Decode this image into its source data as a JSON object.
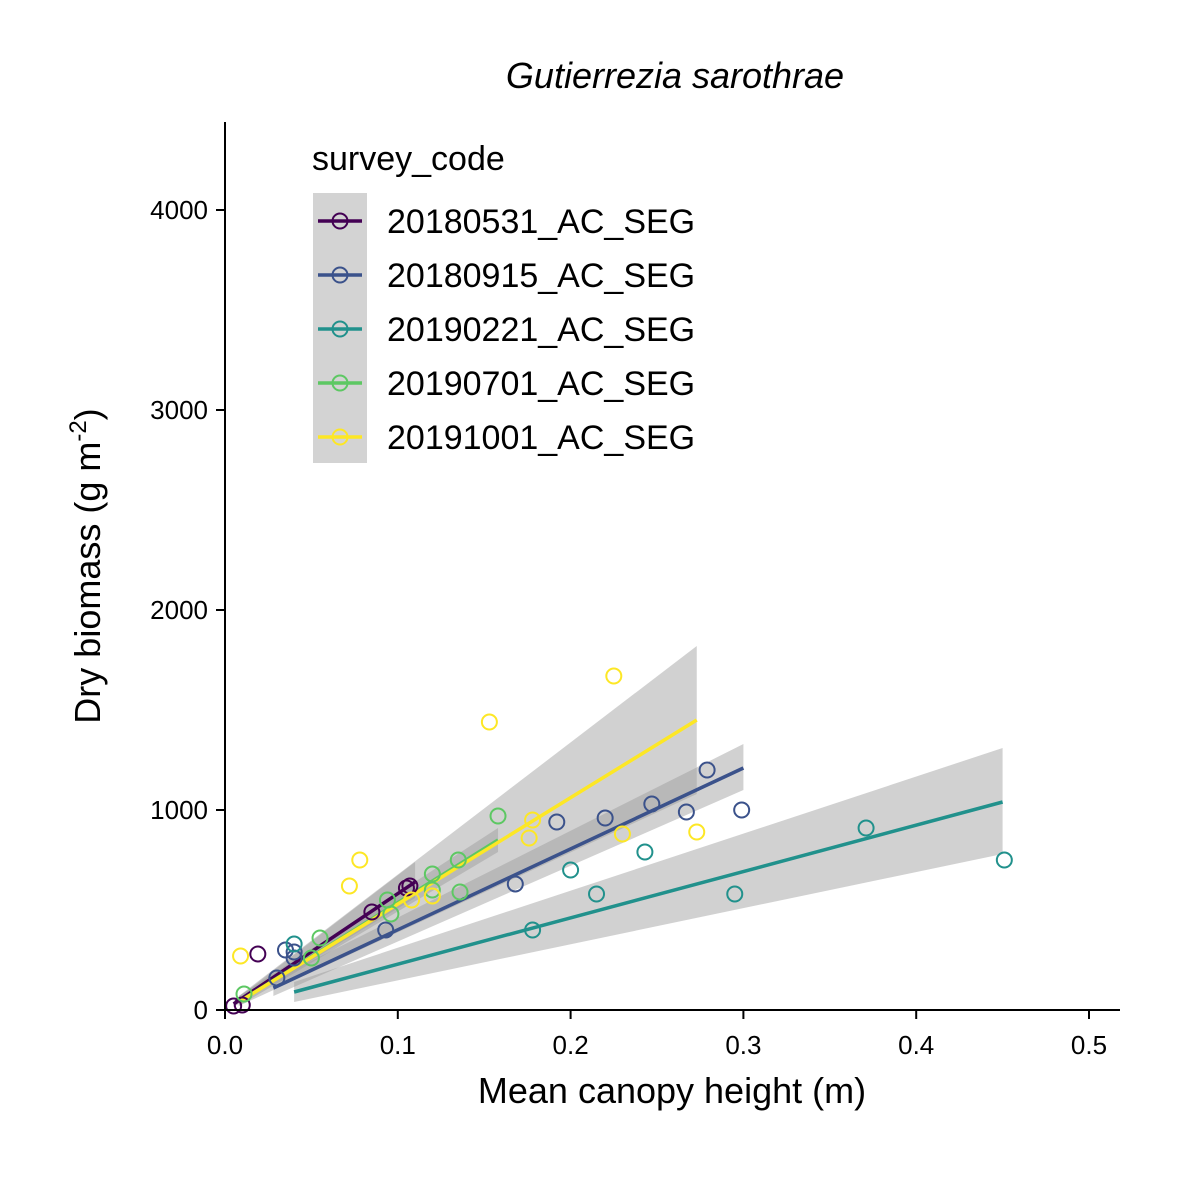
{
  "chart_data": {
    "type": "scatter",
    "title": "Gutierrezia sarothrae",
    "xlabel": "Mean canopy height (m)",
    "ylabel": "Dry biomass (g m",
    "ylabel_sup": "-2",
    "ylabel_close": ")",
    "xlim": [
      0,
      0.52
    ],
    "ylim": [
      0,
      4450
    ],
    "xticks": [
      0.0,
      0.1,
      0.2,
      0.3,
      0.4,
      0.5
    ],
    "xtick_labels": [
      "0.0",
      "0.1",
      "0.2",
      "0.3",
      "0.4",
      "0.5"
    ],
    "yticks": [
      0,
      1000,
      2000,
      3000,
      4000
    ],
    "ytick_labels": [
      "0",
      "1000",
      "2000",
      "3000",
      "4000"
    ],
    "legend": {
      "title": "survey_code",
      "position": "top-left"
    },
    "grid": false,
    "series": [
      {
        "name": "20180531_AC_SEG",
        "color": "#440154",
        "points": [
          [
            0.005,
            20
          ],
          [
            0.01,
            25
          ],
          [
            0.019,
            280
          ],
          [
            0.085,
            490
          ],
          [
            0.105,
            610
          ],
          [
            0.107,
            620
          ]
        ],
        "fit": {
          "x": [
            0.005,
            0.11
          ],
          "y": [
            30,
            640
          ],
          "ci_low": [
            [
              0.005,
              15
            ],
            [
              0.11,
              560
            ]
          ],
          "ci_high": [
            [
              0.005,
              45
            ],
            [
              0.11,
              740
            ]
          ]
        }
      },
      {
        "name": "20180915_AC_SEG",
        "color": "#3B528B",
        "points": [
          [
            0.03,
            160
          ],
          [
            0.035,
            300
          ],
          [
            0.04,
            290
          ],
          [
            0.04,
            260
          ],
          [
            0.093,
            400
          ],
          [
            0.168,
            630
          ],
          [
            0.192,
            940
          ],
          [
            0.22,
            960
          ],
          [
            0.247,
            1030
          ],
          [
            0.267,
            990
          ],
          [
            0.279,
            1200
          ],
          [
            0.299,
            1000
          ]
        ],
        "fit": {
          "x": [
            0.028,
            0.3
          ],
          "y": [
            110,
            1210
          ],
          "ci_low": [
            [
              0.028,
              70
            ],
            [
              0.3,
              1100
            ]
          ],
          "ci_high": [
            [
              0.028,
              150
            ],
            [
              0.3,
              1330
            ]
          ]
        }
      },
      {
        "name": "20190221_AC_SEG",
        "color": "#21918C",
        "points": [
          [
            0.04,
            330
          ],
          [
            0.178,
            400
          ],
          [
            0.2,
            700
          ],
          [
            0.215,
            580
          ],
          [
            0.243,
            790
          ],
          [
            0.295,
            580
          ],
          [
            0.371,
            910
          ],
          [
            0.451,
            750
          ]
        ],
        "fit": {
          "x": [
            0.04,
            0.45
          ],
          "y": [
            90,
            1040
          ],
          "ci_low": [
            [
              0.04,
              40
            ],
            [
              0.45,
              780
            ]
          ],
          "ci_high": [
            [
              0.04,
              140
            ],
            [
              0.45,
              1310
            ]
          ]
        }
      },
      {
        "name": "20190701_AC_SEG",
        "color": "#5DC863",
        "points": [
          [
            0.011,
            80
          ],
          [
            0.05,
            260
          ],
          [
            0.055,
            360
          ],
          [
            0.094,
            550
          ],
          [
            0.096,
            480
          ],
          [
            0.12,
            680
          ],
          [
            0.12,
            600
          ],
          [
            0.135,
            750
          ],
          [
            0.136,
            590
          ],
          [
            0.158,
            970
          ]
        ],
        "fit": {
          "x": [
            0.008,
            0.158
          ],
          "y": [
            40,
            850
          ],
          "ci_low": [
            [
              0.008,
              20
            ],
            [
              0.158,
              790
            ]
          ],
          "ci_high": [
            [
              0.008,
              70
            ],
            [
              0.158,
              910
            ]
          ]
        }
      },
      {
        "name": "20191001_AC_SEG",
        "color": "#FDE725",
        "points": [
          [
            0.009,
            270
          ],
          [
            0.072,
            620
          ],
          [
            0.078,
            750
          ],
          [
            0.108,
            550
          ],
          [
            0.12,
            570
          ],
          [
            0.153,
            1440
          ],
          [
            0.176,
            860
          ],
          [
            0.178,
            950
          ],
          [
            0.225,
            1670
          ],
          [
            0.23,
            880
          ],
          [
            0.273,
            890
          ]
        ],
        "fit": {
          "x": [
            0.008,
            0.273
          ],
          "y": [
            40,
            1450
          ],
          "ci_low": [
            [
              0.008,
              20
            ],
            [
              0.273,
              1080
            ]
          ],
          "ci_high": [
            [
              0.008,
              70
            ],
            [
              0.273,
              1820
            ]
          ]
        }
      }
    ]
  }
}
